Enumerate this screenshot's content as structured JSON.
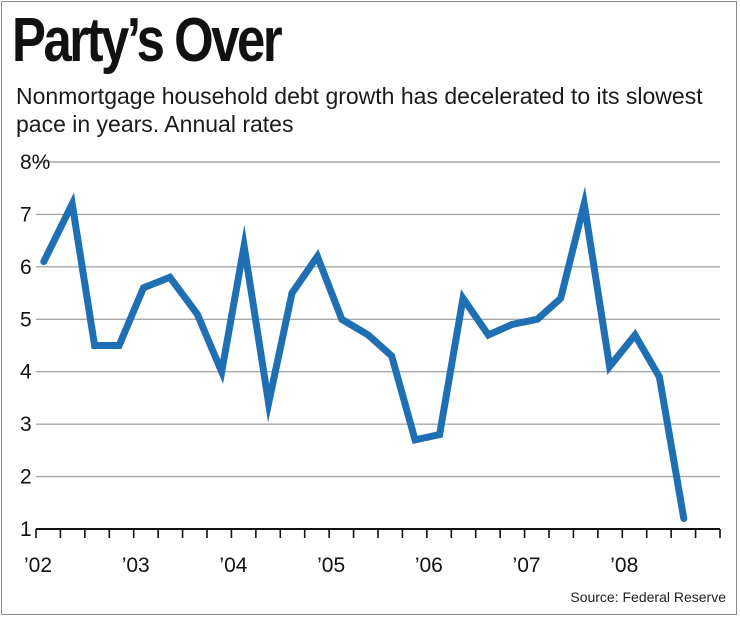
{
  "chart_data": {
    "type": "line",
    "title": "Party’s Over",
    "subtitle": "Nonmortgage household debt growth has decelerated to its slowest pace in years. Annual rates",
    "source": "Source: Federal Reserve",
    "xlabel": "",
    "ylabel": "",
    "ylim": [
      1,
      8
    ],
    "xlim": [
      2002.0,
      2009.0
    ],
    "y_ticks": [
      {
        "value": 8,
        "label": "8%"
      },
      {
        "value": 7,
        "label": "7"
      },
      {
        "value": 6,
        "label": "6"
      },
      {
        "value": 5,
        "label": "5"
      },
      {
        "value": 4,
        "label": "4"
      },
      {
        "value": 3,
        "label": "3"
      },
      {
        "value": 2,
        "label": "2"
      },
      {
        "value": 1,
        "label": "1"
      }
    ],
    "x_ticks": [
      {
        "value": 2002,
        "label": "’02"
      },
      {
        "value": 2003,
        "label": "’03"
      },
      {
        "value": 2004,
        "label": "’04"
      },
      {
        "value": 2005,
        "label": "’05"
      },
      {
        "value": 2006,
        "label": "’06"
      },
      {
        "value": 2007,
        "label": "’07"
      },
      {
        "value": 2008,
        "label": "’08"
      }
    ],
    "grid": true,
    "series": [
      {
        "name": "Nonmortgage household debt growth",
        "color": "#1f6fb4",
        "x": [
          2002.08,
          2002.37,
          2002.6,
          2002.85,
          2003.1,
          2003.37,
          2003.65,
          2003.9,
          2004.13,
          2004.38,
          2004.62,
          2004.88,
          2005.13,
          2005.4,
          2005.64,
          2005.88,
          2006.13,
          2006.37,
          2006.63,
          2006.87,
          2007.13,
          2007.37,
          2007.61,
          2007.87,
          2008.13,
          2008.38,
          2008.63
        ],
        "values": [
          6.1,
          7.2,
          4.5,
          4.5,
          5.6,
          5.8,
          5.1,
          4.0,
          6.4,
          3.4,
          5.5,
          6.2,
          5.0,
          4.7,
          4.3,
          2.7,
          2.8,
          5.4,
          4.7,
          4.9,
          5.0,
          5.4,
          7.2,
          4.1,
          4.7,
          3.9,
          1.2
        ]
      }
    ]
  },
  "colors": {
    "line": "#1f6fb4",
    "grid": "#a8a8a8",
    "axis": "#111111",
    "text": "#111111"
  }
}
